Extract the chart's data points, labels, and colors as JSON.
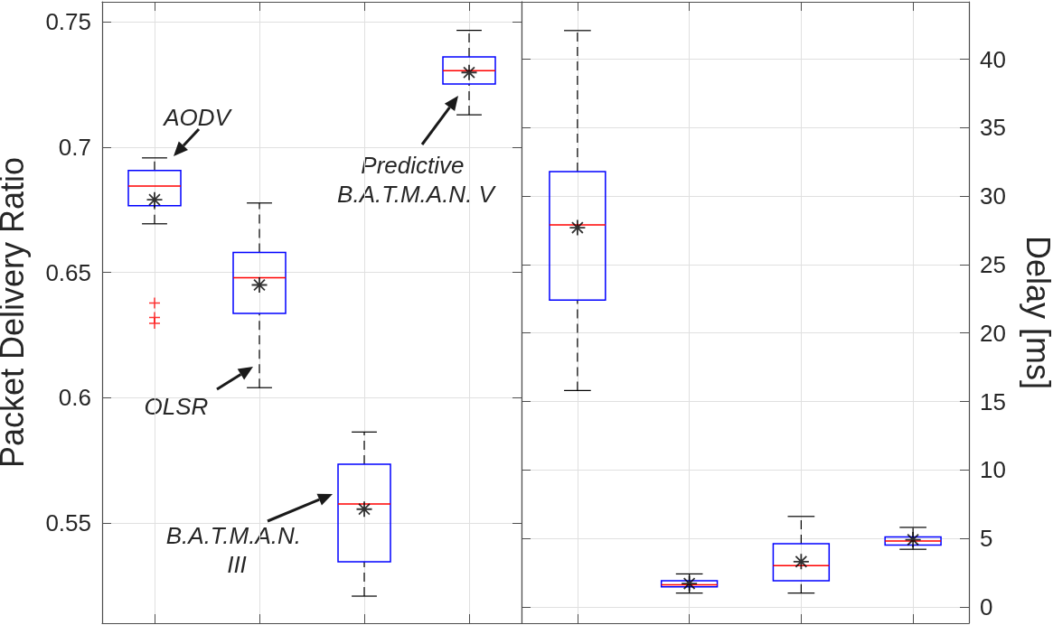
{
  "chart_data": [
    {
      "type": "box",
      "ylabel": "Packet Delivery Ratio",
      "categories": [
        null,
        null,
        null,
        null
      ],
      "ylim": [
        0.51,
        0.758
      ],
      "yticks": [
        0.55,
        0.6,
        0.65,
        0.7,
        0.75
      ],
      "grid": true,
      "annotations": [
        "AODV",
        "Predictive B.A.T.M.A.N. V",
        "OLSR",
        "B.A.T.M.A.N. III"
      ],
      "series": [
        {
          "color": "#0000ff",
          "boxes": [
            {
              "low": 0.6694,
              "q1": 0.6766,
              "median": 0.6845,
              "q3": 0.6907,
              "high": 0.6957,
              "mean": 0.679,
              "outliers": [
                0.6378,
                0.632,
                0.6297
              ]
            },
            {
              "low": 0.604,
              "q1": 0.6336,
              "median": 0.6479,
              "q3": 0.658,
              "high": 0.6777,
              "mean": 0.645
            },
            {
              "low": 0.5208,
              "q1": 0.5345,
              "median": 0.5576,
              "q3": 0.5734,
              "high": 0.5863,
              "mean": 0.5555
            },
            {
              "low": 0.7129,
              "q1": 0.7252,
              "median": 0.7305,
              "q3": 0.736,
              "high": 0.7466,
              "mean": 0.7298
            }
          ]
        }
      ]
    },
    {
      "type": "box",
      "y2label": "Delay [ms]",
      "categories": [
        null,
        null,
        null,
        null
      ],
      "y2lim": [
        -1.2,
        44.2
      ],
      "y2ticks": [
        0,
        5,
        10,
        15,
        20,
        25,
        30,
        35,
        40
      ],
      "grid": true,
      "series": [
        {
          "color": "#0000ff",
          "axis": "y2",
          "boxes": [
            {
              "low": 15.8,
              "q1": 22.4,
              "median": 27.9,
              "q3": 31.8,
              "high": 42.1,
              "mean": 27.7
            },
            {
              "low": 1.0,
              "q1": 1.45,
              "median": 1.6,
              "q3": 1.9,
              "high": 2.4,
              "mean": 1.7
            },
            {
              "low": 1.0,
              "q1": 1.9,
              "median": 3.0,
              "q3": 4.6,
              "high": 6.6,
              "mean": 3.3
            },
            {
              "low": 4.2,
              "q1": 4.5,
              "median": 4.8,
              "q3": 5.1,
              "high": 5.8,
              "mean": 4.9
            }
          ]
        }
      ]
    }
  ]
}
